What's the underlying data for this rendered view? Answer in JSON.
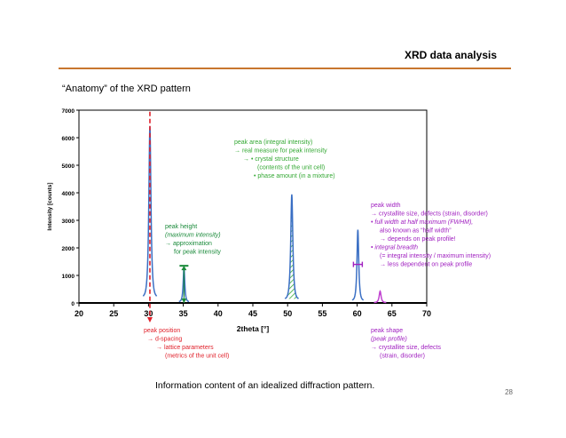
{
  "slide": {
    "title": "XRD data analysis",
    "subtitle": "“Anatomy” of the XRD pattern",
    "caption": "Information content of an idealized diffraction pattern.",
    "page_number": "28"
  },
  "chart_data": {
    "type": "line",
    "xlabel": "2theta [°]",
    "ylabel": "Intensity [counts]",
    "xlim": [
      20,
      70
    ],
    "ylim": [
      0,
      7000
    ],
    "xticks": [
      20,
      25,
      30,
      35,
      40,
      45,
      50,
      55,
      60,
      65,
      70
    ],
    "yticks": [
      0,
      1000,
      2000,
      3000,
      4000,
      5000,
      6000,
      7000
    ],
    "grid": false,
    "peaks": [
      {
        "x": 30.2,
        "y": 6750,
        "width": 0.6,
        "color": "#3a6fc4"
      },
      {
        "x": 35.1,
        "y": 1350,
        "width": 0.45,
        "color": "#3a6fc4"
      },
      {
        "x": 50.6,
        "y": 4150,
        "width": 0.6,
        "color": "#3a6fc4"
      },
      {
        "x": 60.1,
        "y": 2800,
        "width": 0.5,
        "color": "#3a6fc4"
      },
      {
        "x": 63.3,
        "y": 450,
        "width": 0.55,
        "color": "#c040d0"
      }
    ],
    "annotations": {
      "peak_position": [
        "peak position",
        "→ d-spacing",
        "→ lattice parameters",
        "(metrics of the unit cell)"
      ],
      "peak_height": [
        "peak height",
        "(maximum intensity)",
        "→ approximation",
        "for peak intensity"
      ],
      "peak_area": [
        "peak area (integral intensity)",
        "→ real measure for peak intensity",
        "→ • crystal structure",
        "(contents of the unit cell)",
        "• phase amount (in a mixture)"
      ],
      "peak_width": [
        "peak width",
        "→ crystallite size, defects (strain, disorder)",
        "• full width at half maximum (FWHM),",
        "also known as “half width”",
        "→ depends on peak profile!",
        "• integral breadth",
        "(= integral intensity / maximum intensity)",
        "→ less dependent on peak profile"
      ],
      "peak_shape": [
        "peak shape",
        "(peak profile)",
        "→ crystallite size, defects",
        "(strain, disorder)"
      ]
    },
    "colors": {
      "axis": "#000000",
      "curve": "#3a6fc4",
      "position": "#e0202a",
      "height": "#1a8a3a",
      "area": "#33a833",
      "width": "#a020c0"
    }
  }
}
